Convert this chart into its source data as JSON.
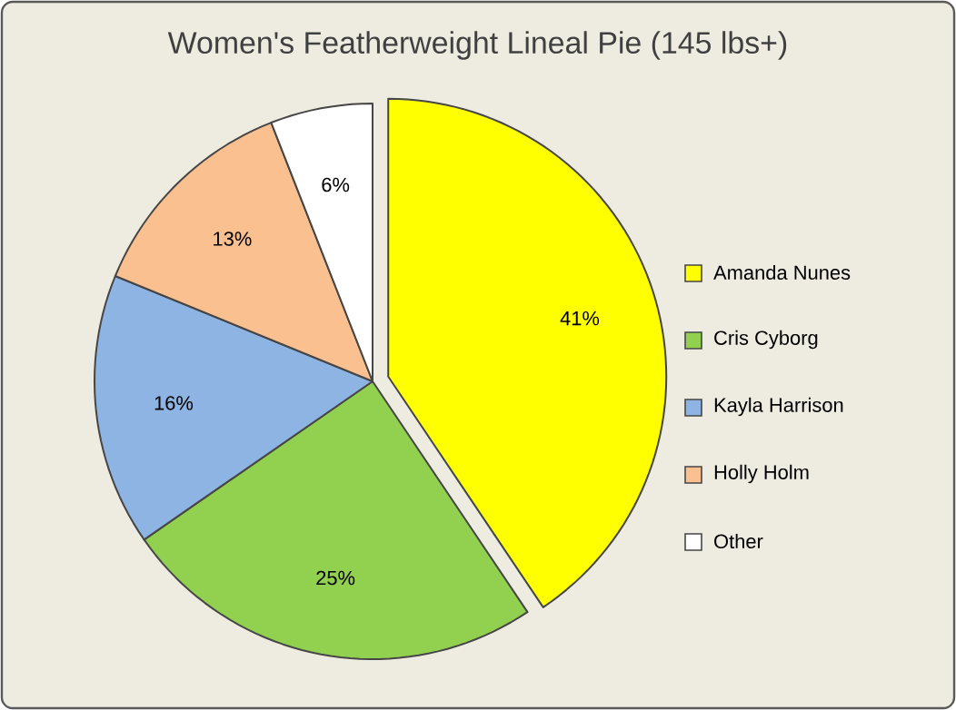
{
  "chart_data": {
    "type": "pie",
    "title": "Women's Featherweight Lineal Pie (145 lbs+)",
    "categories": [
      "Amanda Nunes",
      "Cris Cyborg",
      "Kayla Harrison",
      "Holly Holm",
      "Other"
    ],
    "values": [
      41,
      25,
      16,
      13,
      6
    ],
    "value_labels": [
      "41%",
      "25%",
      "16%",
      "13%",
      "6%"
    ],
    "colors": [
      "#ffff00",
      "#92d050",
      "#8eb4e3",
      "#fac090",
      "#ffffff"
    ],
    "legend": "right"
  }
}
